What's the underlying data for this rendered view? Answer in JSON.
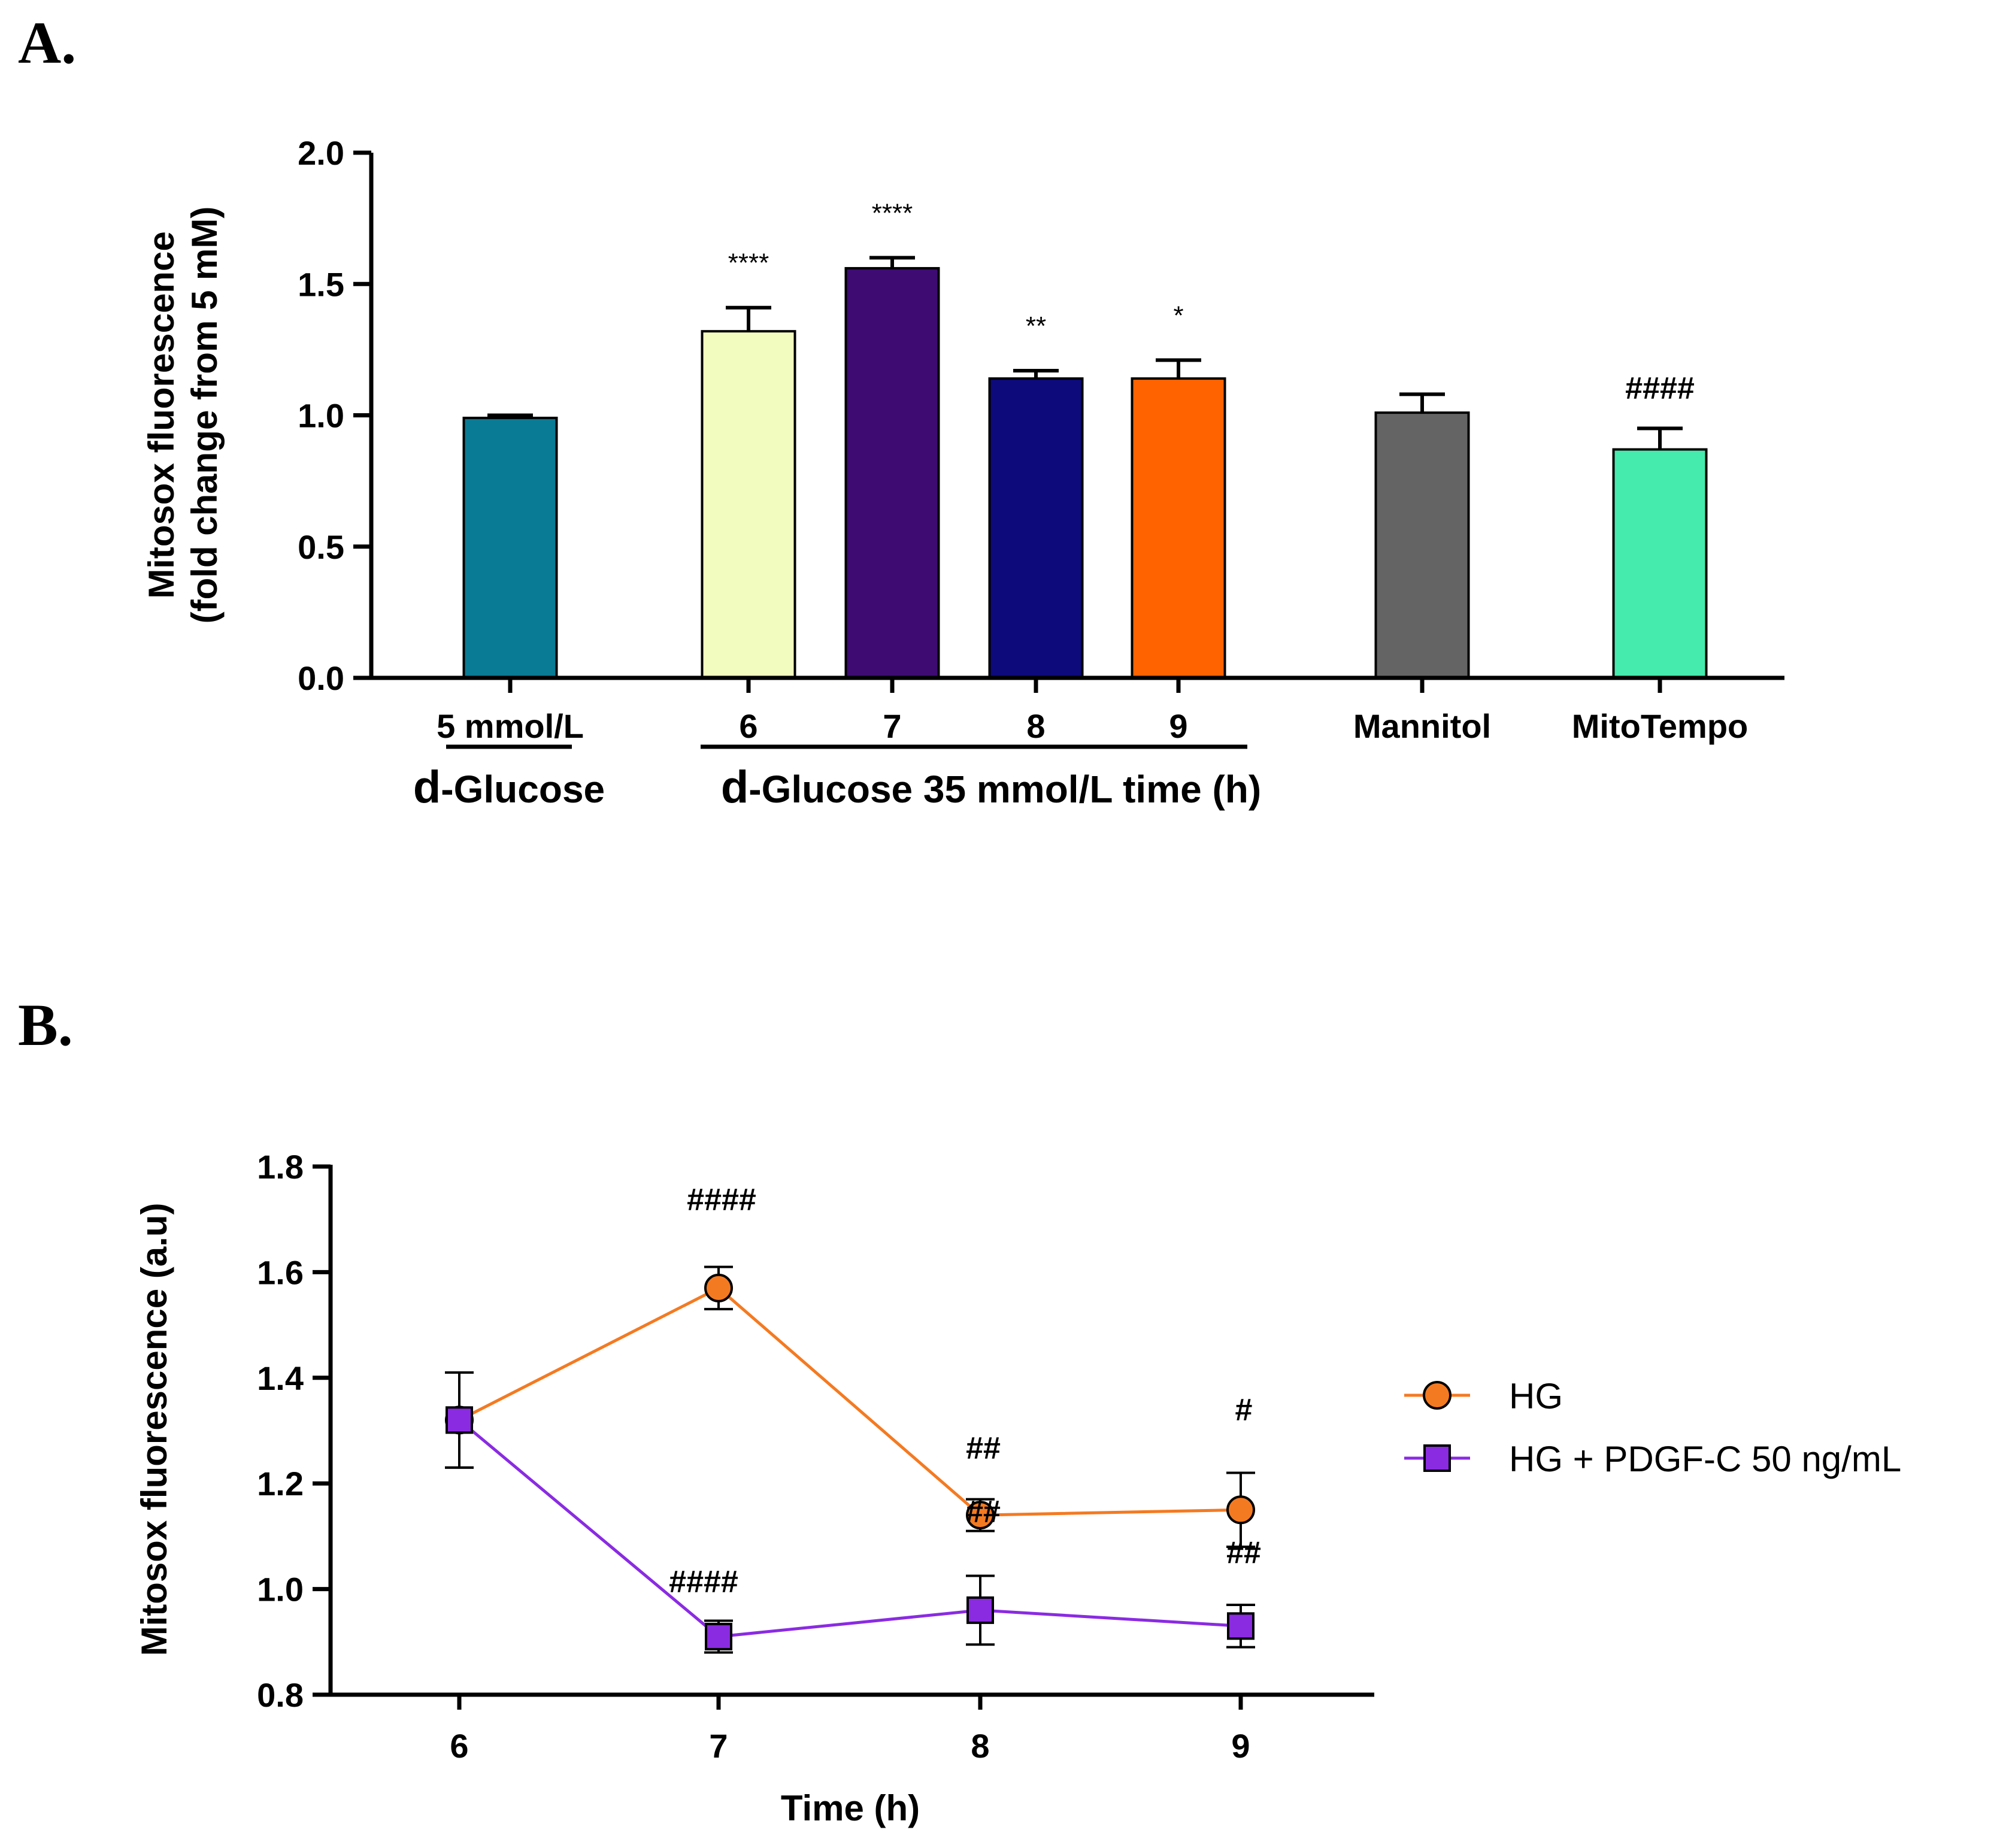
{
  "figure": {
    "panel_a_label": "A.",
    "panel_b_label": "B."
  },
  "chart_data": [
    {
      "type": "bar",
      "panel": "A.",
      "ylabel": "Mitosox fluorescence",
      "ylabel_line2": "(fold change from 5 mM)",
      "ylim": [
        0,
        2.0
      ],
      "yticks": [
        "0.0",
        "0.5",
        "1.0",
        "1.5",
        "2.0"
      ],
      "categories": [
        "5 mmol/L",
        "6",
        "7",
        "8",
        "9",
        "Mannitol",
        "MitoTempo"
      ],
      "values": [
        0.99,
        1.32,
        1.56,
        1.14,
        1.14,
        1.01,
        0.87
      ],
      "errors": [
        0.01,
        0.09,
        0.04,
        0.03,
        0.07,
        0.07,
        0.08
      ],
      "colors": [
        "#0a7b94",
        "#f3fcbf",
        "#3d0b72",
        "#0d0a7c",
        "#ff6300",
        "#646464",
        "#45ebad"
      ],
      "annotations": [
        "",
        "****",
        "****",
        "**",
        "*",
        "",
        "####"
      ],
      "group_labels": {
        "d_glucose_prefix": "d",
        "d_glucose_rest": "-Glucose",
        "time_prefix": "d",
        "time_rest": "-Glucose 35 mmol/L time (h)"
      }
    },
    {
      "type": "line",
      "panel": "B.",
      "xlabel": "Time (h)",
      "ylabel": "Mitosox fluorescence (a.u)",
      "x": [
        6,
        7,
        8,
        9
      ],
      "xticks": [
        "6",
        "7",
        "8",
        "9"
      ],
      "ylim": [
        0.8,
        1.8
      ],
      "yticks": [
        "0.8",
        "1.0",
        "1.2",
        "1.4",
        "1.6",
        "1.8"
      ],
      "series": [
        {
          "name": "HG",
          "values": [
            1.32,
            1.57,
            1.14,
            1.15
          ],
          "errors": [
            0.09,
            0.04,
            0.03,
            0.07
          ],
          "color": "#f47a21",
          "marker": "circle",
          "annotations": [
            "",
            "####",
            "##",
            "#"
          ]
        },
        {
          "name": "HG + PDGF-C 50 ng/mL",
          "values": [
            1.32,
            0.91,
            0.96,
            0.93
          ],
          "errors": [
            0.09,
            0.03,
            0.065,
            0.04
          ],
          "color": "#8a2be2",
          "marker": "square",
          "annotations": [
            "",
            "####",
            "##",
            "##"
          ]
        }
      ],
      "legend_position": "right"
    }
  ]
}
